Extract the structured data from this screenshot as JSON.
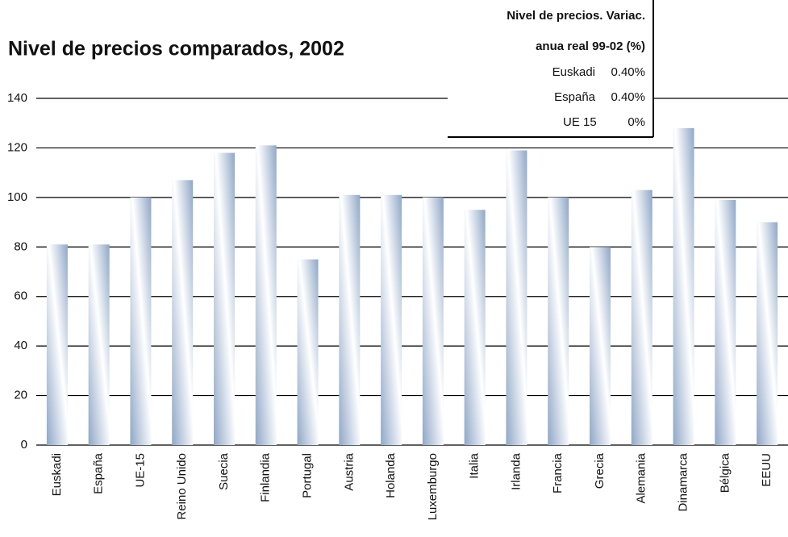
{
  "chart_data": {
    "type": "bar",
    "title": "Nivel de precios comparados, 2002",
    "categories": [
      "Euskadi",
      "España",
      "UE-15",
      "Reino Unido",
      "Suecia",
      "Finlandia",
      "Portugal",
      "Austria",
      "Holanda",
      "Luxemburgo",
      "Italia",
      "Irlanda",
      "Francia",
      "Grecia",
      "Alemania",
      "Dinamarca",
      "Bélgica",
      "EEUU"
    ],
    "values": [
      81,
      81,
      100,
      107,
      118,
      121,
      75,
      101,
      101,
      100,
      95,
      119,
      100,
      80,
      103,
      128,
      99,
      90
    ],
    "color": "#8fa7c7",
    "ylim": [
      0,
      140
    ],
    "yticks": [
      0,
      20,
      40,
      60,
      80,
      100,
      120,
      140
    ],
    "grid": true
  },
  "table": {
    "title": [
      "Nivel de precios. Variac.",
      "anua real 99-02 (%)"
    ],
    "rows": [
      [
        "Euskadi",
        "0.40%"
      ],
      [
        "España",
        "0.40%"
      ],
      [
        "UE 15",
        "0%"
      ]
    ]
  }
}
